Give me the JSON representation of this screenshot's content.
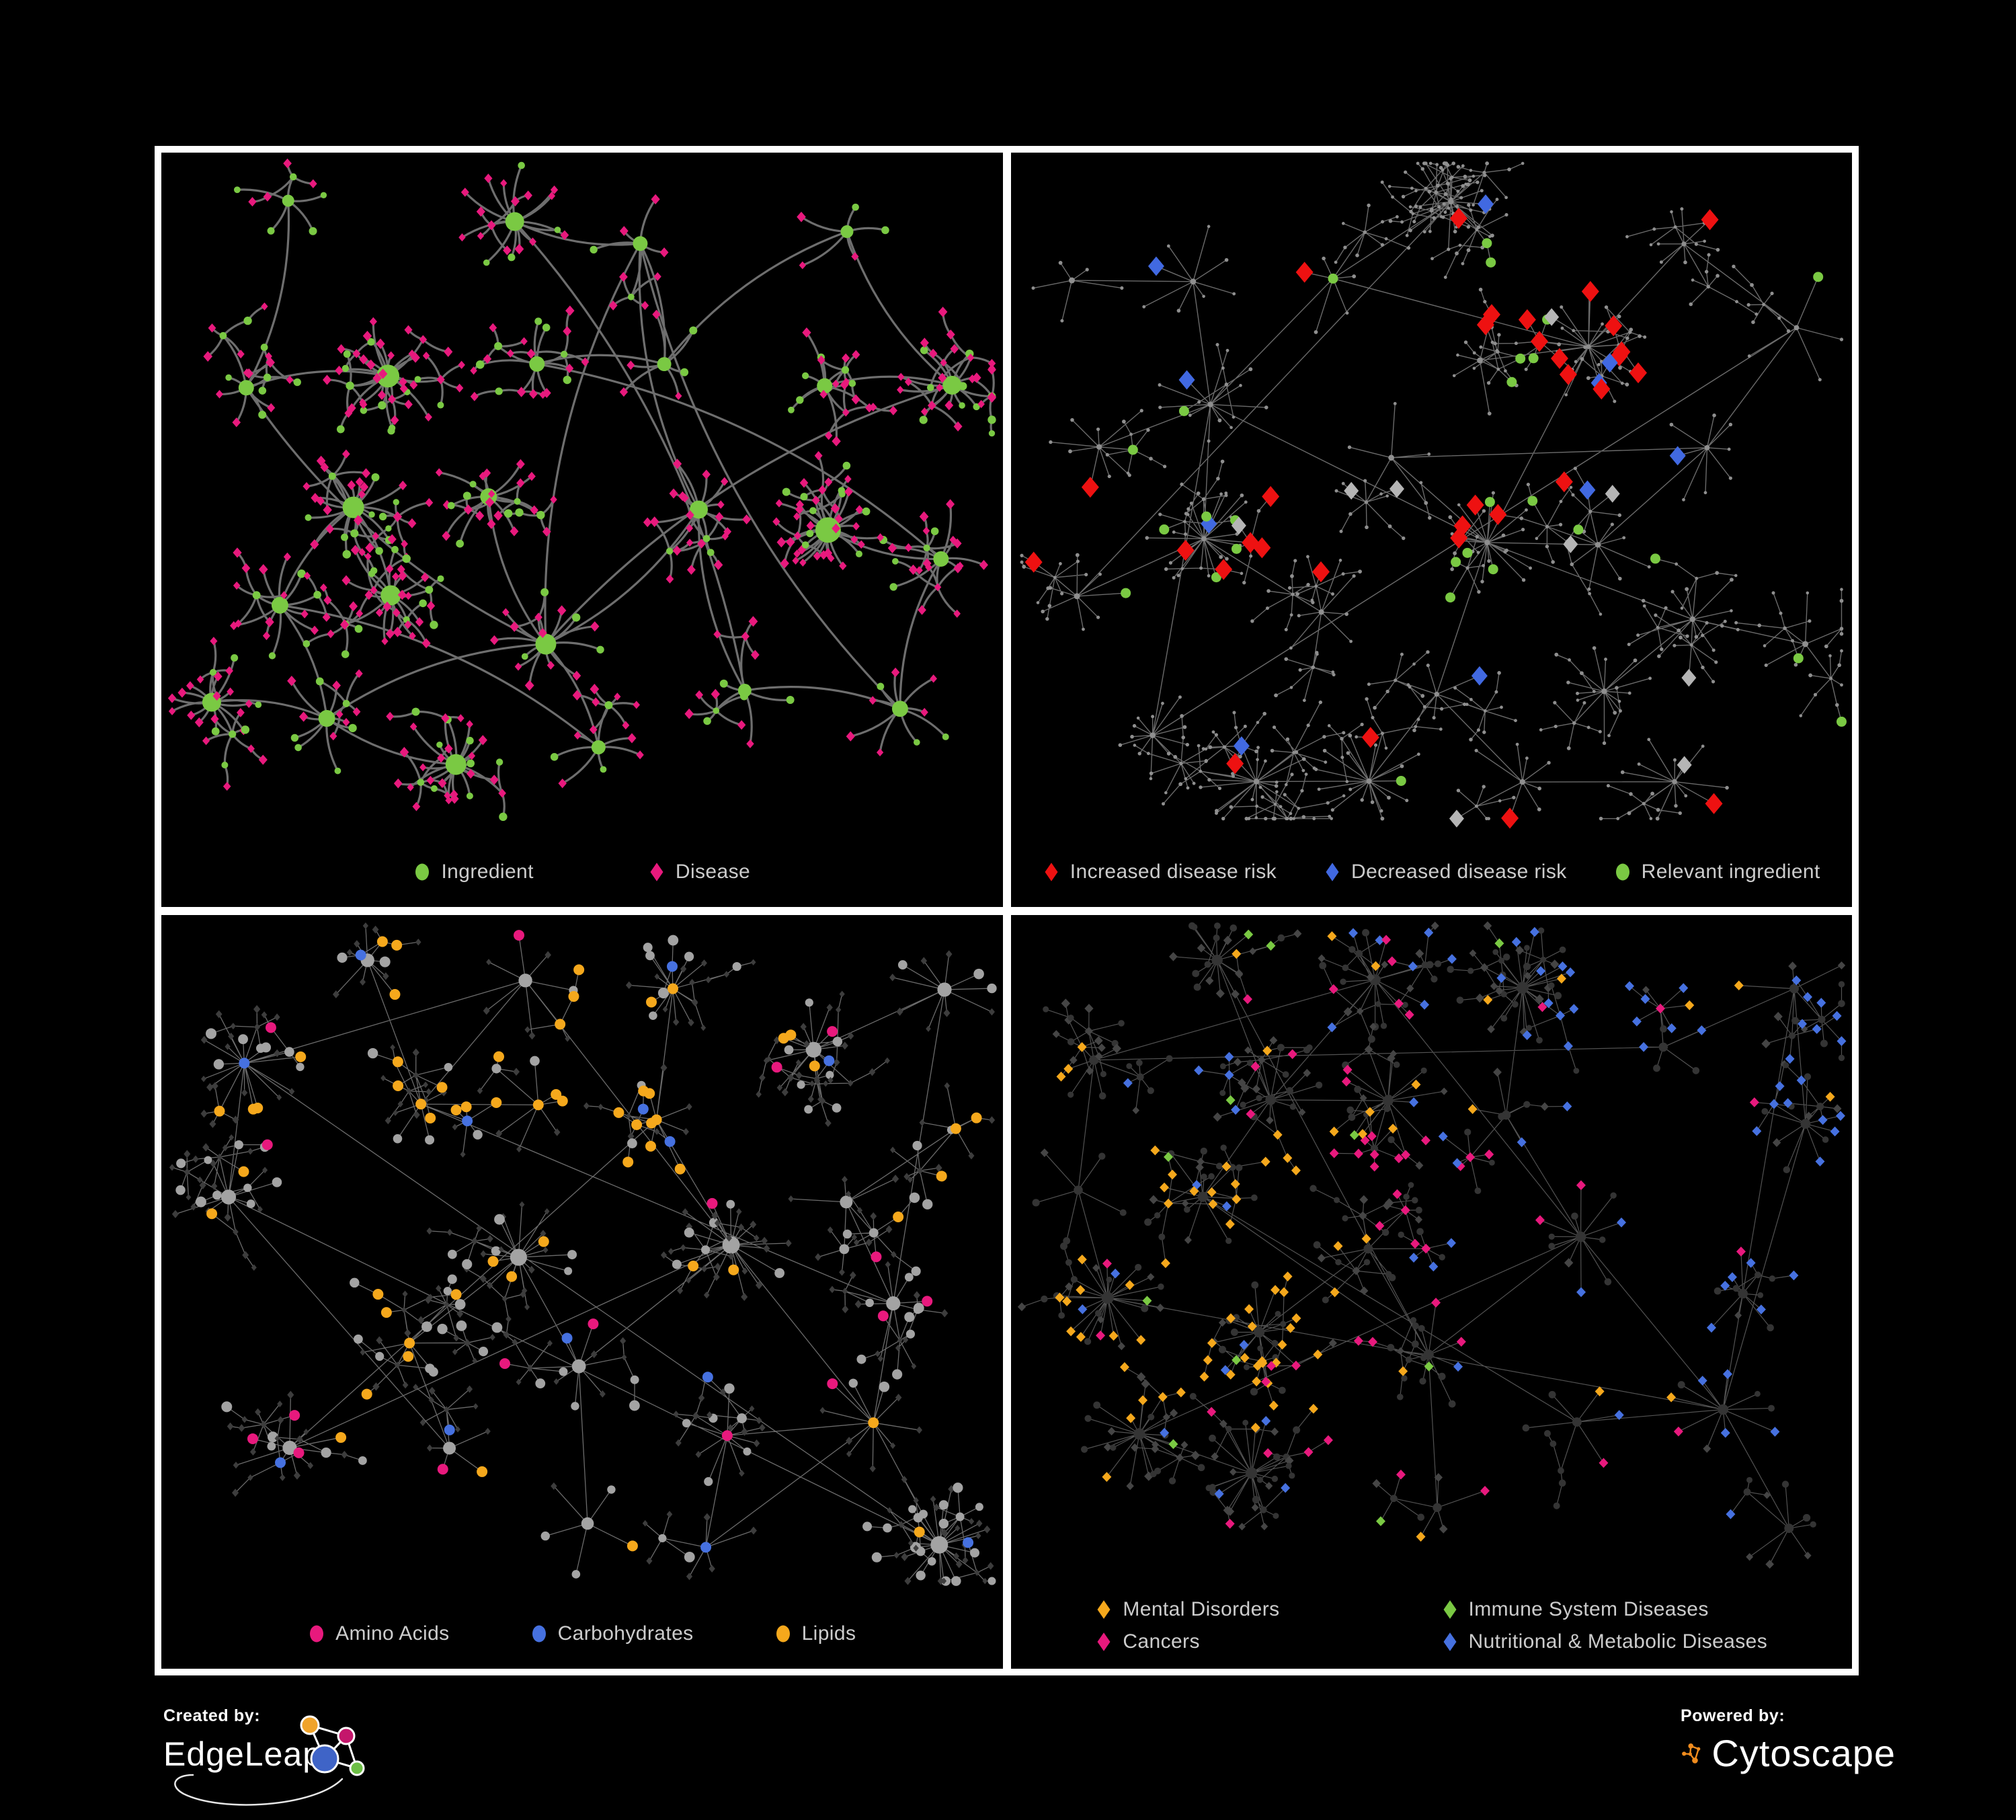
{
  "page": {
    "background": "#000000",
    "frame_color": "#FFFFFF"
  },
  "panels": [
    {
      "id": "ingredient-disease-network",
      "legend_columns": 1,
      "legend": [
        {
          "label": "Ingredient",
          "shape": "circle",
          "color": "#7AC943"
        },
        {
          "label": "Disease",
          "shape": "diamond",
          "color": "#E8197D"
        }
      ],
      "style": {
        "edge_color": "#6E6E6E",
        "edge_width": 3.2,
        "edge_curve": 0.14,
        "circle_color": "#7AC943",
        "diamond_color": "#E8197D",
        "circle_r": 5.5,
        "diamond_r": 6,
        "diamond_v": 1.15,
        "hub_base": 6,
        "hub_deg_scale": 0.5,
        "hub_max": 19,
        "uniform_base": false,
        "size_jitter": 0.3
      },
      "gen": {
        "seed": 19,
        "hubs": 24,
        "hub_dist": 170,
        "extra_links": 6,
        "leaf_min": 5,
        "leaf_max": 26,
        "mid_prob": 0.2,
        "child_max": 5,
        "chain_prob": 0.25,
        "leaf_diamond_prob": 0.72
      },
      "highlights": []
    },
    {
      "id": "disease-risk-network",
      "legend_columns": 1,
      "legend": [
        {
          "label": "Increased disease risk",
          "shape": "diamond",
          "color": "#EE1111"
        },
        {
          "label": "Decreased disease risk",
          "shape": "diamond",
          "color": "#4169E1"
        },
        {
          "label": "Relevant ingredient",
          "shape": "circle",
          "color": "#7AC943"
        }
      ],
      "style": {
        "edge_color": "#6A6A6A",
        "edge_width": 1.4,
        "edge_curve": 0,
        "circle_color": "#8F8F8F",
        "diamond_color": "#8F8F8F",
        "circle_r": 2.6,
        "diamond_r": 2.6,
        "diamond_v": 1.2,
        "hub_base": 4,
        "hub_deg_scale": 0,
        "hub_max": 4,
        "uniform_base": true,
        "size_jitter": 0.25
      },
      "gen": {
        "seed": 83,
        "hubs": 26,
        "hub_dist": 160,
        "extra_links": 7,
        "leaf_min": 5,
        "leaf_max": 28,
        "mid_prob": 0.24,
        "child_max": 7,
        "chain_prob": 0.45,
        "leaf_diamond_prob": 0.6
      },
      "highlights": [
        {
          "name": "increased-risk",
          "shape": "diamond",
          "color": "#EE1111",
          "size": 13,
          "count": 32,
          "region": [
            0.2,
            0.18,
            0.75,
            0.62
          ],
          "scatter": 0.12
        },
        {
          "name": "decreased-risk",
          "shape": "diamond",
          "color": "#4169E1",
          "size": 12,
          "count": 10,
          "region": [
            0.06,
            0.2,
            0.33,
            0.55
          ],
          "scatter": 0.25
        },
        {
          "name": "neutral-risk",
          "shape": "diamond",
          "color": "#B5B5B5",
          "size": 11,
          "count": 9,
          "region": [
            0.18,
            0.22,
            0.72,
            0.62
          ],
          "scatter": 0.15
        },
        {
          "name": "relevant-ingredient",
          "shape": "circle",
          "color": "#7AC943",
          "size": 7.5,
          "count": 27,
          "region": [
            0.12,
            0.12,
            0.72,
            0.68
          ],
          "scatter": 0.15
        }
      ]
    },
    {
      "id": "ingredient-class-network",
      "legend_columns": 1,
      "legend": [
        {
          "label": "Amino Acids",
          "shape": "circle",
          "color": "#E8197D"
        },
        {
          "label": "Carbohydrates",
          "shape": "circle",
          "color": "#4671E0"
        },
        {
          "label": "Lipids",
          "shape": "circle",
          "color": "#F5A81C"
        }
      ],
      "style": {
        "edge_color": "rgba(255,255,255,0.42)",
        "edge_width": 1.3,
        "edge_curve": 0,
        "circle_color": "#A3A3A3",
        "diamond_color": "#3D3D3D",
        "circle_r": 7,
        "diamond_r": 4.5,
        "diamond_v": 1.2,
        "hub_base": 8,
        "hub_deg_scale": 0.22,
        "hub_max": 13,
        "uniform_base": false,
        "size_jitter": 0.3
      },
      "gen": {
        "seed": 77,
        "hubs": 24,
        "hub_dist": 165,
        "extra_links": 6,
        "leaf_min": 5,
        "leaf_max": 26,
        "mid_prob": 0.22,
        "child_max": 6,
        "chain_prob": 0.3,
        "leaf_diamond_prob": 0.62
      },
      "highlights": [
        {
          "name": "lipids",
          "shape": "circle",
          "color": "#F5A81C",
          "size": 8,
          "count": 58,
          "region": [
            0.2,
            0.1,
            0.72,
            0.6
          ],
          "scatter": 0.18
        },
        {
          "name": "carbohydrates",
          "shape": "circle",
          "color": "#4671E0",
          "size": 8,
          "count": 13,
          "region": [
            0.3,
            0.12,
            0.62,
            0.45
          ],
          "scatter": 0.15
        },
        {
          "name": "amino-acids",
          "shape": "circle",
          "color": "#E8197D",
          "size": 8,
          "count": 17,
          "region": [
            0,
            0,
            1,
            1
          ],
          "scatter": 1
        }
      ]
    },
    {
      "id": "disease-class-network",
      "legend_columns": 2,
      "legend": [
        {
          "label": "Mental Disorders",
          "shape": "diamond",
          "color": "#F5A81C"
        },
        {
          "label": "Immune System Diseases",
          "shape": "diamond",
          "color": "#7AC943"
        },
        {
          "label": "Cancers",
          "shape": "diamond",
          "color": "#E8197D"
        },
        {
          "label": "Nutritional & Metabolic Diseases",
          "shape": "diamond",
          "color": "#4671E0"
        }
      ],
      "style": {
        "edge_color": "rgba(255,255,255,0.32)",
        "edge_width": 1.2,
        "edge_curve": 0,
        "circle_color": "#343434",
        "diamond_color": "#454545",
        "circle_r": 5,
        "diamond_r": 6,
        "diamond_v": 1.05,
        "hub_base": 6,
        "hub_deg_scale": 0.12,
        "hub_max": 9,
        "uniform_base": false,
        "size_jitter": 0.25
      },
      "gen": {
        "seed": 77,
        "hubs": 24,
        "hub_dist": 165,
        "extra_links": 6,
        "leaf_min": 5,
        "leaf_max": 26,
        "mid_prob": 0.22,
        "child_max": 6,
        "chain_prob": 0.3,
        "leaf_diamond_prob": 0.62
      },
      "highlights": [
        {
          "name": "mental-disorders",
          "shape": "diamond",
          "color": "#F5A81C",
          "size": 7,
          "count": 80,
          "region": [
            0.04,
            0.32,
            0.4,
            0.78
          ],
          "scatter": 0.07
        },
        {
          "name": "cancers",
          "shape": "diamond",
          "color": "#E8197D",
          "size": 7,
          "count": 52,
          "region": [
            0.28,
            0.3,
            0.68,
            0.85
          ],
          "scatter": 0.12
        },
        {
          "name": "nutritional-metabolic",
          "shape": "diamond",
          "color": "#4671E0",
          "size": 7,
          "count": 80,
          "region": [
            0.5,
            0.02,
            1,
            0.95
          ],
          "scatter": 0.15
        },
        {
          "name": "immune-system",
          "shape": "diamond",
          "color": "#7AC943",
          "size": 7,
          "count": 11,
          "region": [
            0,
            0,
            1,
            1
          ],
          "scatter": 1
        }
      ]
    }
  ],
  "footer": {
    "edgeleap": {
      "label": "Created by:",
      "name": "EdgeLeap",
      "node_colors": [
        "#F0A32A",
        "#C4166B",
        "#3F64C7",
        "#6CBE45"
      ]
    },
    "cytoscape": {
      "label": "Powered by:",
      "name": "Cytoscape",
      "color": "#F08C1E"
    }
  }
}
